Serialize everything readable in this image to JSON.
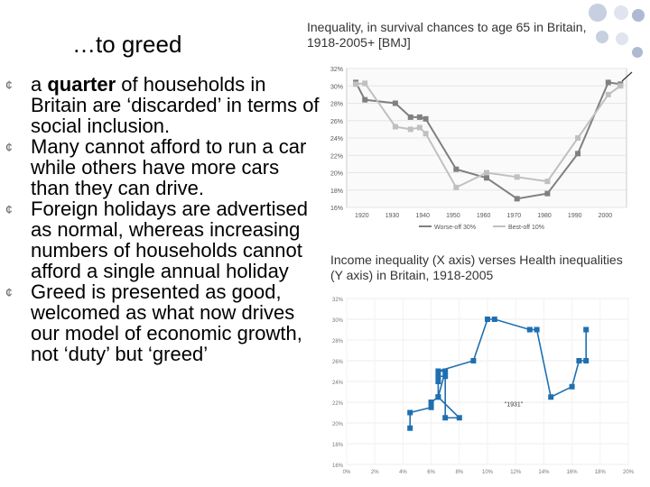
{
  "slide": {
    "title": "…to greed",
    "bullets": [
      {
        "pre": "a ",
        "bold": "quarter",
        "post": " of households in Britain are ‘discarded’ in terms of social inclusion."
      },
      {
        "pre": "Many cannot afford to run a car while others have more cars than they can drive.",
        "bold": "",
        "post": ""
      },
      {
        "pre": "Foreign holidays are advertised as normal, whereas increasing numbers of households cannot afford a single annual holiday",
        "bold": "",
        "post": ""
      },
      {
        "pre": "Greed is presented as good, welcomed as what now drives our model of economic growth, not ‘duty’ but ‘greed’",
        "bold": "",
        "post": ""
      }
    ],
    "bullet_icon": "circle-bullet-icon",
    "decor_colors": [
      "#c7cfe0",
      "#dfe4ee",
      "#aeb9d2"
    ]
  },
  "chart_data": [
    {
      "type": "line",
      "title": "Inequality, in survival chances to age 65 in Britain, 1918-2005+ [BMJ]",
      "x": [
        1918,
        1921,
        1931,
        1936,
        1939,
        1941,
        1951,
        1961,
        1971,
        1981,
        1991,
        2001,
        2005
      ],
      "series": [
        {
          "name": "Worse-off 30%",
          "color": "#808080",
          "values": [
            30.4,
            28.4,
            28.0,
            26.4,
            26.4,
            26.2,
            20.4,
            19.4,
            17.0,
            17.6,
            22.2,
            30.4,
            30.2
          ]
        },
        {
          "name": "Best-off 10%",
          "color": "#c0c0c0",
          "values": [
            30.2,
            30.3,
            25.3,
            25.0,
            25.2,
            24.5,
            18.3,
            20.0,
            19.5,
            19.0,
            24.0,
            29.0,
            30.0
          ]
        }
      ],
      "xticks": [
        "1920",
        "1930",
        "1940",
        "1950",
        "1960",
        "1970",
        "1980",
        "1990",
        "2000"
      ],
      "yticks": [
        "16%",
        "18%",
        "20%",
        "22%",
        "24%",
        "26%",
        "28%",
        "30%",
        "32%"
      ],
      "ylim": [
        16,
        32
      ],
      "xlim": [
        1915,
        2007
      ],
      "legend": "bottom"
    },
    {
      "type": "scatter",
      "title": "Income inequality (X axis) verses Health inequalities (Y axis) in Britain, 1918-2005",
      "series": [
        {
          "color": "#1f6fb0",
          "points": [
            [
              4.5,
              19.5
            ],
            [
              4.5,
              21.0
            ],
            [
              6.0,
              21.5
            ],
            [
              6.0,
              22.0
            ],
            [
              6.5,
              22.5
            ],
            [
              6.5,
              24.0
            ],
            [
              6.5,
              24.5
            ],
            [
              7.0,
              24.5
            ],
            [
              7.0,
              20.5
            ],
            [
              8.0,
              20.5
            ],
            [
              6.5,
              22.5
            ],
            [
              7.0,
              25.0
            ],
            [
              6.5,
              25.0
            ],
            [
              9.0,
              26.0
            ],
            [
              10.0,
              30.0
            ],
            [
              10.5,
              30.0
            ],
            [
              13.0,
              29.0
            ],
            [
              13.5,
              29.0
            ],
            [
              14.5,
              22.5
            ],
            [
              16.0,
              23.5
            ],
            [
              16.5,
              26.0
            ],
            [
              17.0,
              26.0
            ],
            [
              17.0,
              29.0
            ]
          ]
        }
      ],
      "annotation": "\"1931\"",
      "xticks": [
        "0%",
        "2%",
        "4%",
        "6%",
        "8%",
        "10%",
        "12%",
        "14%",
        "16%",
        "18%",
        "20%"
      ],
      "yticks": [
        "16%",
        "18%",
        "20%",
        "22%",
        "24%",
        "26%",
        "28%",
        "30%",
        "32%"
      ],
      "xlim": [
        0,
        20
      ],
      "ylim": [
        16,
        32
      ]
    }
  ]
}
